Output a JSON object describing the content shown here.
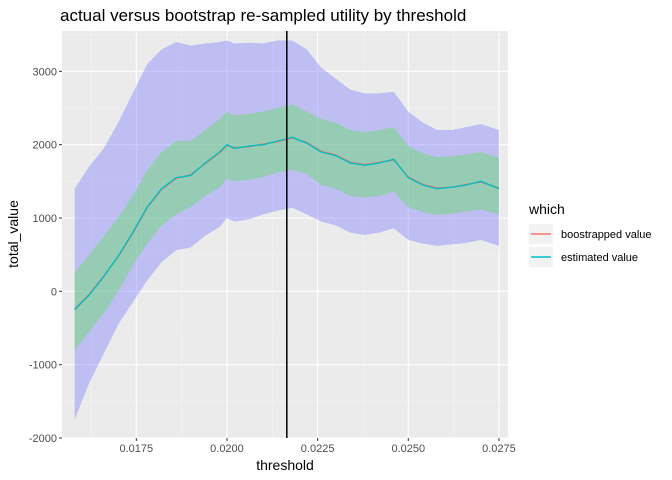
{
  "chart_data": {
    "type": "line",
    "title": "actual versus bootstrap re-sampled utility by threshold",
    "xlabel": "threshold",
    "ylabel": "total_value",
    "xlim": [
      0.01545,
      0.02775
    ],
    "ylim": [
      -2000,
      3550
    ],
    "x_ticks": [
      0.0175,
      0.02,
      0.0225,
      0.025,
      0.0275
    ],
    "x_tick_labels": [
      "0.0175",
      "0.0200",
      "0.0225",
      "0.0250",
      "0.0275"
    ],
    "y_ticks": [
      -2000,
      -1000,
      0,
      1000,
      2000,
      3000
    ],
    "y_tick_labels": [
      "-2000",
      "-1000",
      "0",
      "1000",
      "2000",
      "3000"
    ],
    "vline_x": 0.02165,
    "grid": true,
    "legend": {
      "title": "which",
      "position": "right",
      "entries": [
        {
          "label": "boostrapped value",
          "color": "#f8766d"
        },
        {
          "label": "estimated value",
          "color": "#00bfc4"
        }
      ]
    },
    "x": [
      0.0158,
      0.0162,
      0.0166,
      0.017,
      0.0174,
      0.0178,
      0.0182,
      0.0186,
      0.019,
      0.0194,
      0.0198,
      0.02,
      0.0202,
      0.0206,
      0.021,
      0.0214,
      0.0218,
      0.0222,
      0.0226,
      0.023,
      0.0234,
      0.0238,
      0.0242,
      0.0246,
      0.025,
      0.0254,
      0.0258,
      0.0262,
      0.0266,
      0.027,
      0.0275
    ],
    "series": [
      {
        "name": "estimated value",
        "color": "#00bfc4",
        "values": [
          -250,
          -50,
          200,
          480,
          800,
          1150,
          1400,
          1550,
          1580,
          1750,
          1900,
          2000,
          1950,
          1980,
          2000,
          2050,
          2100,
          2020,
          1900,
          1850,
          1750,
          1720,
          1750,
          1800,
          1550,
          1450,
          1400,
          1420,
          1450,
          1500,
          1400
        ]
      },
      {
        "name": "boostrapped value",
        "color": "#f8766d",
        "values": [
          -240,
          -40,
          210,
          470,
          790,
          1140,
          1390,
          1540,
          1590,
          1740,
          1890,
          1990,
          1960,
          1970,
          2010,
          2040,
          2090,
          2030,
          1910,
          1860,
          1760,
          1730,
          1760,
          1790,
          1560,
          1460,
          1410,
          1420,
          1460,
          1490,
          1410
        ]
      }
    ],
    "bands": [
      {
        "fill": "#7b7bff",
        "opacity": 0.4,
        "lower": [
          -1750,
          -1250,
          -850,
          -450,
          -150,
          150,
          400,
          560,
          600,
          760,
          880,
          1000,
          950,
          980,
          1050,
          1100,
          1140,
          1050,
          950,
          900,
          800,
          770,
          800,
          860,
          700,
          650,
          620,
          640,
          660,
          700,
          620
        ],
        "upper": [
          1400,
          1700,
          1950,
          2300,
          2700,
          3100,
          3300,
          3400,
          3350,
          3380,
          3400,
          3420,
          3380,
          3390,
          3380,
          3420,
          3420,
          3300,
          3050,
          2900,
          2750,
          2700,
          2700,
          2720,
          2450,
          2300,
          2200,
          2200,
          2240,
          2280,
          2200
        ]
      },
      {
        "fill": "#66dd66",
        "opacity": 0.45,
        "lower": [
          -800,
          -550,
          -300,
          0,
          350,
          650,
          900,
          1050,
          1150,
          1300,
          1420,
          1530,
          1500,
          1520,
          1560,
          1620,
          1660,
          1600,
          1450,
          1400,
          1300,
          1280,
          1300,
          1360,
          1150,
          1080,
          1040,
          1060,
          1090,
          1120,
          1050
        ],
        "upper": [
          250,
          500,
          750,
          1000,
          1300,
          1650,
          1900,
          2050,
          2050,
          2200,
          2350,
          2450,
          2400,
          2420,
          2450,
          2500,
          2550,
          2450,
          2350,
          2300,
          2200,
          2170,
          2200,
          2240,
          1980,
          1880,
          1830,
          1840,
          1870,
          1900,
          1820
        ]
      }
    ]
  }
}
